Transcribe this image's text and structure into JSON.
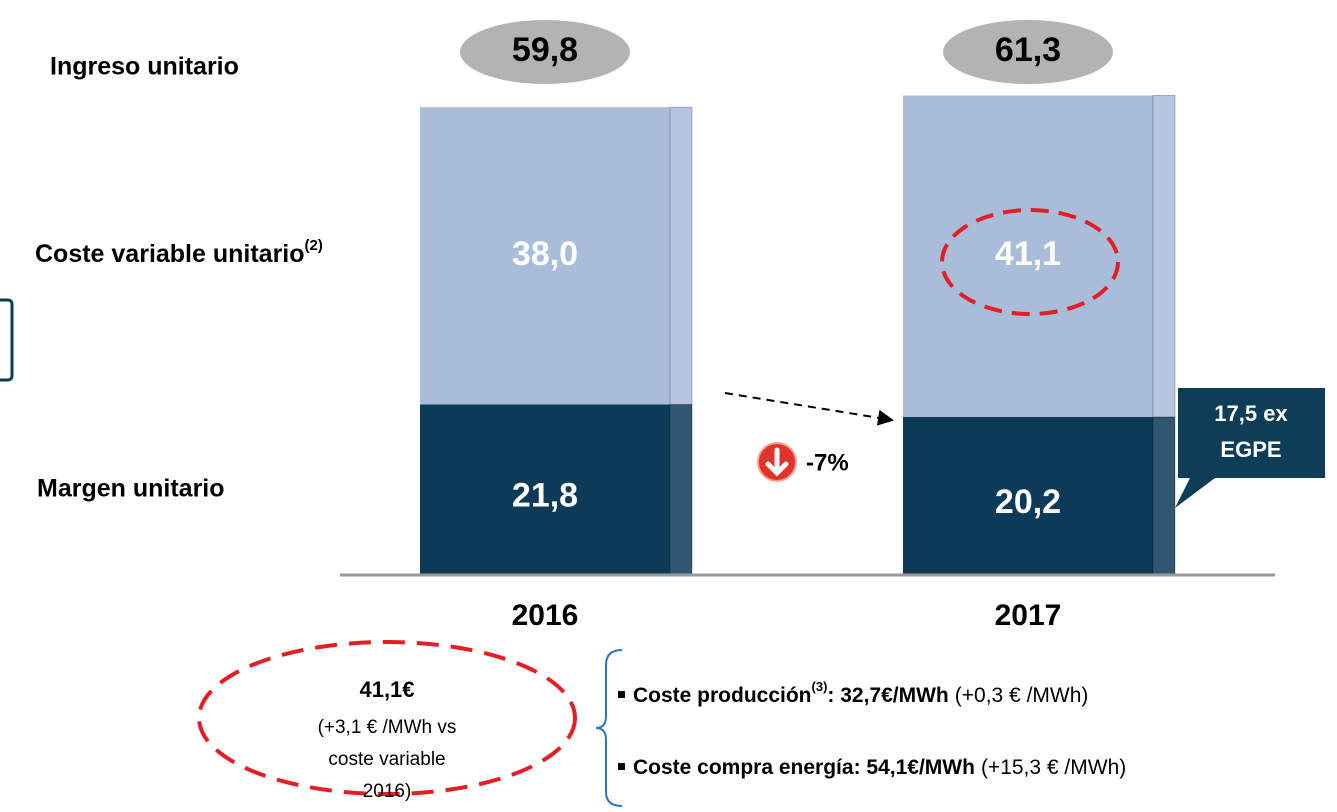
{
  "chart_data": {
    "type": "bar",
    "stacked": true,
    "categories": [
      "2016",
      "2017"
    ],
    "series": [
      {
        "name": "Margen unitario",
        "color": "#0d3a57",
        "values": [
          21.8,
          20.2
        ],
        "value_labels": [
          "21,8",
          "20,2"
        ]
      },
      {
        "name": "Coste variable unitario",
        "note": "(2)",
        "color": "#a9bcda",
        "values": [
          38.0,
          41.1
        ],
        "value_labels": [
          "38,0",
          "41,1"
        ]
      }
    ],
    "total_name": "Ingreso unitario",
    "totals": [
      59.8,
      61.3
    ],
    "total_labels": [
      "59,8",
      "61,3"
    ],
    "ylim": [
      0,
      62
    ],
    "annotations": {
      "change": "-7%",
      "callout": [
        "17,5 ex",
        "EGPE"
      ],
      "note": {
        "headline": "41,1€",
        "lines": [
          "(+3,1 € /MWh vs",
          "coste variable",
          "2016)"
        ]
      },
      "bullets": [
        {
          "label": "Coste producción",
          "sup": "(3)",
          "value": ": 32,7€/MWh",
          "delta": "(+0,3 € /MWh)"
        },
        {
          "label": "Coste compra energía: 54,1€/MWh",
          "delta": "(+15,3 € /MWh)"
        }
      ]
    }
  }
}
